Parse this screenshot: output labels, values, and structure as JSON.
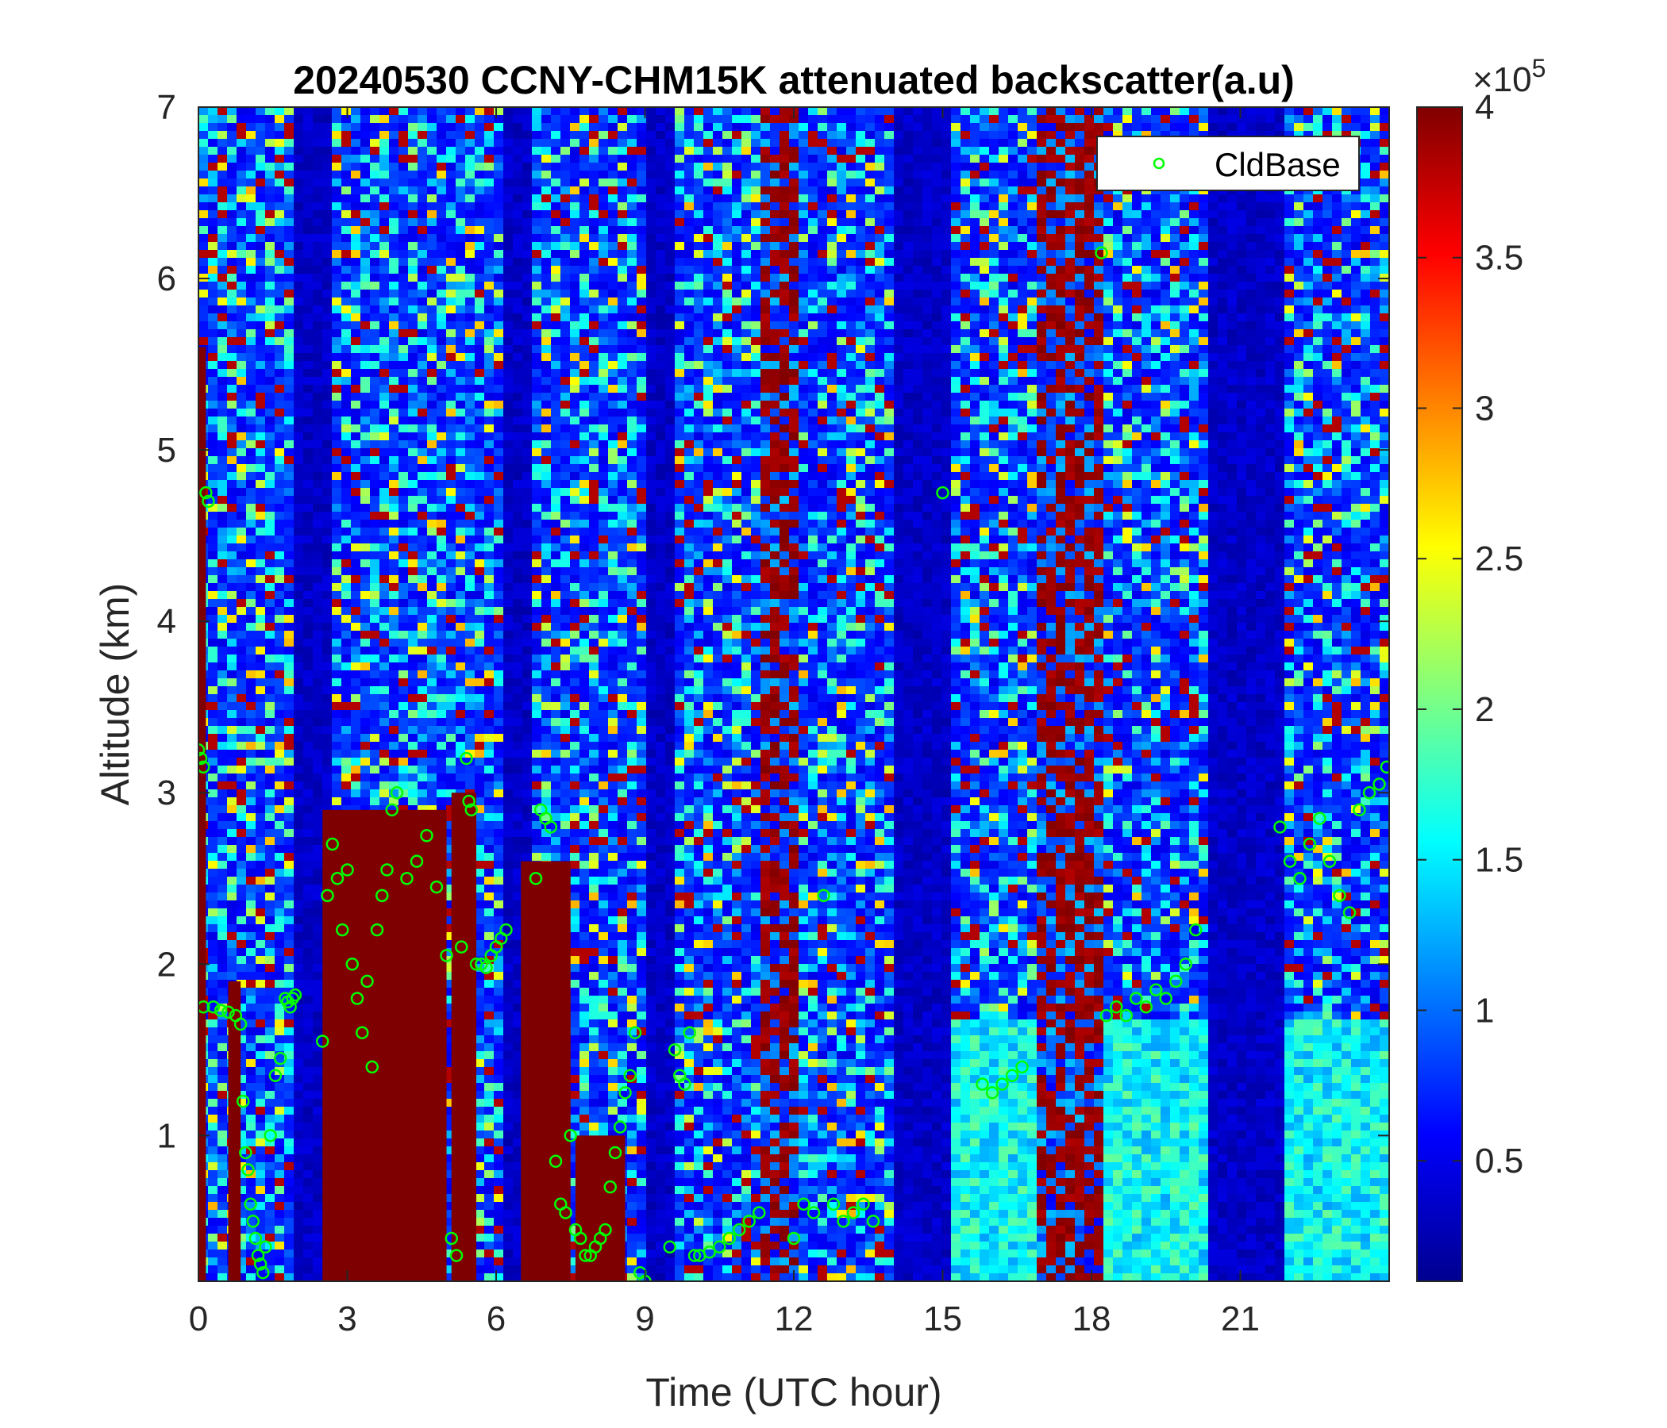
{
  "chart_data": {
    "type": "heatmap",
    "title": "20240530 CCNY-CHM15K attenuated backscatter(a.u)",
    "xlabel": "Time (UTC hour)",
    "ylabel": "Altitude (km)",
    "xlim": [
      0,
      24
    ],
    "ylim": [
      0.15,
      7
    ],
    "x_ticks": [
      0,
      3,
      6,
      9,
      12,
      15,
      18,
      21
    ],
    "x_tick_labels": [
      "0",
      "3",
      "6",
      "9",
      "12",
      "15",
      "18",
      "21"
    ],
    "y_ticks": [
      1,
      2,
      3,
      4,
      5,
      6,
      7
    ],
    "y_tick_labels": [
      "1",
      "2",
      "3",
      "4",
      "5",
      "6",
      "7"
    ],
    "colorbar": {
      "colormap": "jet",
      "clim": [
        0.1,
        4
      ],
      "ticks": [
        0.5,
        1,
        1.5,
        2,
        2.5,
        3,
        3.5,
        4
      ],
      "tick_labels": [
        "0.5",
        "1",
        "1.5",
        "2",
        "2.5",
        "3",
        "3.5",
        "4"
      ],
      "multiplier_prefix": "×10",
      "multiplier_exponent": "5"
    },
    "legend": {
      "position": "top-right",
      "entries": [
        "CldBase"
      ],
      "marker": "circle-open",
      "color": "#00ff00"
    },
    "series": [
      {
        "name": "CldBase",
        "type": "scatter",
        "x": [
          0.0,
          0.05,
          0.1,
          0.15,
          0.2,
          0.1,
          0.3,
          0.45,
          0.6,
          0.75,
          0.85,
          0.9,
          0.95,
          1.0,
          1.05,
          1.1,
          1.15,
          1.2,
          1.25,
          1.3,
          1.35,
          1.45,
          1.55,
          1.65,
          1.75,
          1.8,
          1.85,
          1.9,
          1.95,
          2.5,
          2.6,
          2.7,
          2.8,
          2.9,
          3.0,
          3.1,
          3.2,
          3.3,
          3.4,
          3.5,
          3.6,
          3.7,
          3.8,
          3.9,
          4.0,
          4.2,
          4.4,
          4.6,
          4.8,
          5.0,
          5.1,
          5.2,
          5.3,
          5.4,
          5.45,
          5.5,
          5.6,
          5.7,
          5.8,
          5.9,
          6.0,
          6.1,
          6.2,
          6.8,
          6.9,
          7.0,
          7.1,
          7.2,
          7.3,
          7.4,
          7.5,
          7.6,
          7.7,
          7.8,
          7.9,
          8.0,
          8.1,
          8.2,
          8.3,
          8.4,
          8.5,
          8.6,
          8.7,
          8.8,
          8.9,
          9.0,
          9.5,
          9.6,
          9.7,
          9.8,
          9.9,
          10.0,
          10.1,
          10.3,
          10.5,
          10.7,
          10.9,
          11.1,
          11.3,
          12.0,
          12.2,
          12.4,
          12.6,
          12.8,
          13.0,
          13.2,
          13.4,
          13.6,
          15.0,
          15.8,
          16.0,
          16.2,
          16.4,
          16.6,
          18.2,
          18.3,
          18.5,
          18.7,
          18.9,
          19.1,
          19.3,
          19.5,
          19.7,
          19.9,
          20.1,
          21.8,
          22.0,
          22.2,
          22.4,
          22.6,
          22.8,
          23.0,
          23.2,
          23.4,
          23.6,
          23.8,
          23.95
        ],
        "y": [
          3.25,
          3.2,
          3.15,
          4.75,
          4.7,
          1.75,
          1.75,
          1.73,
          1.72,
          1.7,
          1.65,
          1.2,
          0.9,
          0.8,
          0.6,
          0.5,
          0.4,
          0.3,
          0.25,
          0.2,
          0.35,
          1.0,
          1.35,
          1.45,
          1.8,
          1.78,
          1.75,
          1.8,
          1.82,
          1.55,
          2.4,
          2.7,
          2.5,
          2.2,
          2.55,
          2.0,
          1.8,
          1.6,
          1.9,
          1.4,
          2.2,
          2.4,
          2.55,
          2.9,
          3.0,
          2.5,
          2.6,
          2.75,
          2.45,
          2.05,
          0.4,
          0.3,
          2.1,
          3.2,
          2.95,
          2.9,
          2.0,
          2.0,
          1.98,
          2.05,
          2.1,
          2.15,
          2.2,
          2.5,
          2.9,
          2.85,
          2.8,
          0.85,
          0.6,
          0.55,
          1.0,
          0.45,
          0.4,
          0.3,
          0.3,
          0.35,
          0.4,
          0.45,
          0.7,
          0.9,
          1.05,
          1.25,
          1.35,
          1.6,
          0.2,
          0.15,
          0.35,
          1.5,
          1.35,
          1.3,
          1.6,
          0.3,
          0.3,
          0.32,
          0.35,
          0.4,
          0.45,
          0.5,
          0.55,
          0.4,
          0.6,
          0.55,
          2.4,
          0.6,
          0.5,
          0.55,
          0.6,
          0.5,
          4.75,
          1.3,
          1.25,
          1.3,
          1.35,
          1.4,
          6.15,
          1.7,
          1.75,
          1.7,
          1.8,
          1.75,
          1.85,
          1.8,
          1.9,
          2.0,
          2.2,
          2.8,
          2.6,
          2.5,
          2.7,
          2.85,
          2.6,
          2.4,
          2.3,
          2.9,
          3.0,
          3.05,
          3.15
        ]
      }
    ]
  }
}
